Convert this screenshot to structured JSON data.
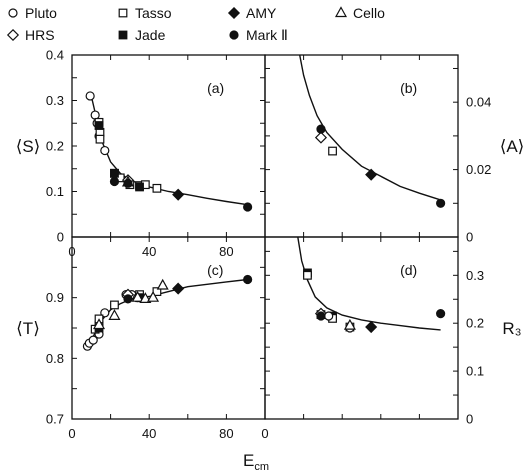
{
  "legend": [
    {
      "label": "Pluto",
      "marker": "circle-open"
    },
    {
      "label": "Tasso",
      "marker": "square-open"
    },
    {
      "label": "AMY",
      "marker": "diamond-filled"
    },
    {
      "label": "Cello",
      "marker": "triangle-open"
    },
    {
      "label": "HRS",
      "marker": "diamond-open"
    },
    {
      "label": "Jade",
      "marker": "square-filled"
    },
    {
      "label": "Mark Ⅱ",
      "marker": "circle-filled"
    }
  ],
  "x_axis_label": "E",
  "x_axis_label_sub": "cm",
  "chart_data": [
    {
      "panel": "(a)",
      "type": "scatter",
      "ylabel": "⟨S⟩",
      "ylabel_side": "left",
      "xlim": [
        0,
        100
      ],
      "ylim": [
        0,
        0.4
      ],
      "y_ticks": [
        "0",
        "0.1",
        "0.2",
        "0.3",
        "0.4"
      ],
      "x_ticks": [
        "0",
        "40",
        "80"
      ],
      "series": [
        {
          "name": "Pluto",
          "marker": "circle-open",
          "points": [
            [
              9.4,
              0.31
            ],
            [
              12,
              0.268
            ],
            [
              13,
              0.25
            ],
            [
              14,
              0.222
            ],
            [
              17,
              0.19
            ]
          ]
        },
        {
          "name": "Tasso",
          "marker": "square-open",
          "points": [
            [
              14,
              0.252
            ],
            [
              14.5,
              0.23
            ],
            [
              14.5,
              0.215
            ],
            [
              22,
              0.14
            ],
            [
              25,
              0.13
            ],
            [
              30,
              0.115
            ],
            [
              35,
              0.113
            ],
            [
              38,
              0.115
            ],
            [
              44,
              0.107
            ]
          ]
        },
        {
          "name": "Jade",
          "marker": "square-filled",
          "points": [
            [
              14,
              0.245
            ],
            [
              22,
              0.14
            ],
            [
              35,
              0.11
            ]
          ]
        },
        {
          "name": "HRS",
          "marker": "diamond-open",
          "points": [
            [
              29,
              0.125
            ]
          ]
        },
        {
          "name": "Cello",
          "marker": "triangle-open",
          "points": [
            [
              29,
              0.12
            ]
          ]
        },
        {
          "name": "AMY",
          "marker": "diamond-filled",
          "points": [
            [
              55,
              0.093
            ]
          ]
        },
        {
          "name": "Mark Ⅱ",
          "marker": "circle-filled",
          "points": [
            [
              22,
              0.122
            ],
            [
              29,
              0.118
            ],
            [
              91,
              0.066
            ]
          ]
        }
      ],
      "fit_curve": [
        [
          10,
          0.31
        ],
        [
          13,
          0.255
        ],
        [
          16,
          0.205
        ],
        [
          20,
          0.165
        ],
        [
          25,
          0.14
        ],
        [
          30,
          0.125
        ],
        [
          40,
          0.11
        ],
        [
          50,
          0.1
        ],
        [
          60,
          0.093
        ],
        [
          70,
          0.085
        ],
        [
          80,
          0.078
        ],
        [
          91,
          0.071
        ]
      ]
    },
    {
      "panel": "(b)",
      "type": "scatter",
      "ylabel": "⟨A⟩",
      "ylabel_side": "right",
      "xlim": [
        0,
        100
      ],
      "ylim": [
        0,
        0.054
      ],
      "y_ticks": [
        "0",
        "0.02",
        "0.04"
      ],
      "series": [
        {
          "name": "HRS",
          "marker": "diamond-open",
          "points": [
            [
              29,
              0.0295
            ]
          ]
        },
        {
          "name": "Mark Ⅱ",
          "marker": "circle-filled",
          "points": [
            [
              29,
              0.032
            ],
            [
              91,
              0.01
            ]
          ]
        },
        {
          "name": "Tasso",
          "marker": "square-open",
          "points": [
            [
              35,
              0.0255
            ]
          ]
        },
        {
          "name": "AMY",
          "marker": "diamond-filled",
          "points": [
            [
              55,
              0.0185
            ]
          ]
        }
      ],
      "fit_curve": [
        [
          18,
          0.054
        ],
        [
          20,
          0.048
        ],
        [
          23,
          0.042
        ],
        [
          27,
          0.036
        ],
        [
          32,
          0.031
        ],
        [
          40,
          0.026
        ],
        [
          50,
          0.021
        ],
        [
          60,
          0.018
        ],
        [
          70,
          0.015
        ],
        [
          80,
          0.013
        ],
        [
          91,
          0.011
        ]
      ]
    },
    {
      "panel": "(c)",
      "type": "scatter",
      "ylabel": "⟨T⟩",
      "ylabel_side": "left",
      "xlim": [
        0,
        100
      ],
      "ylim": [
        0.7,
        1.0
      ],
      "y_ticks": [
        "0.7",
        "0.8",
        "0.9"
      ],
      "x_ticks": [
        "0",
        "40",
        "80"
      ],
      "series": [
        {
          "name": "Pluto",
          "marker": "circle-open",
          "points": [
            [
              8,
              0.82
            ],
            [
              9,
              0.825
            ],
            [
              11,
              0.83
            ],
            [
              14,
              0.84
            ],
            [
              17,
              0.875
            ],
            [
              28,
              0.905
            ],
            [
              31,
              0.905
            ],
            [
              34,
              0.9
            ]
          ]
        },
        {
          "name": "Tasso",
          "marker": "square-open",
          "points": [
            [
              12,
              0.848
            ],
            [
              14,
              0.855
            ],
            [
              14,
              0.865
            ],
            [
              22,
              0.888
            ],
            [
              35,
              0.905
            ],
            [
              44,
              0.91
            ]
          ]
        },
        {
          "name": "Jade",
          "marker": "square-filled",
          "points": [
            [
              14,
              0.85
            ],
            [
              35,
              0.9
            ]
          ]
        },
        {
          "name": "Cello",
          "marker": "triangle-open",
          "points": [
            [
              14,
              0.855
            ],
            [
              22,
              0.87
            ],
            [
              34,
              0.9
            ],
            [
              38,
              0.898
            ],
            [
              42,
              0.9
            ],
            [
              47,
              0.92
            ]
          ]
        },
        {
          "name": "HRS",
          "marker": "diamond-open",
          "points": [
            [
              29,
              0.905
            ]
          ]
        },
        {
          "name": "AMY",
          "marker": "diamond-filled",
          "points": [
            [
              55,
              0.915
            ]
          ]
        },
        {
          "name": "Mark Ⅱ",
          "marker": "circle-filled",
          "points": [
            [
              29,
              0.898
            ],
            [
              91,
              0.93
            ]
          ]
        }
      ],
      "fit_curve": [
        [
          8,
          0.815
        ],
        [
          10,
          0.83
        ],
        [
          13,
          0.848
        ],
        [
          16,
          0.865
        ],
        [
          20,
          0.88
        ],
        [
          25,
          0.89
        ],
        [
          30,
          0.897
        ],
        [
          40,
          0.902
        ],
        [
          50,
          0.91
        ],
        [
          60,
          0.918
        ],
        [
          70,
          0.922
        ],
        [
          80,
          0.926
        ],
        [
          91,
          0.93
        ]
      ]
    },
    {
      "panel": "(d)",
      "type": "scatter",
      "ylabel": "R₃",
      "ylabel_side": "right",
      "xlim": [
        0,
        100
      ],
      "ylim": [
        0,
        0.38
      ],
      "y_ticks": [
        "0",
        "0.1",
        "0.2",
        "0.3"
      ],
      "series": [
        {
          "name": "Jade",
          "marker": "square-filled",
          "points": [
            [
              22,
              0.305
            ],
            [
              35,
              0.215
            ]
          ]
        },
        {
          "name": "Tasso",
          "marker": "square-open",
          "points": [
            [
              22,
              0.3
            ],
            [
              29,
              0.218
            ],
            [
              35,
              0.21
            ],
            [
              44,
              0.192
            ]
          ]
        },
        {
          "name": "HRS",
          "marker": "diamond-open",
          "points": [
            [
              29,
              0.22
            ]
          ]
        },
        {
          "name": "Pluto",
          "marker": "circle-open",
          "points": [
            [
              33,
              0.215
            ],
            [
              44,
              0.19
            ]
          ]
        },
        {
          "name": "Cello",
          "marker": "triangle-open",
          "points": [
            [
              44,
              0.195
            ]
          ]
        },
        {
          "name": "AMY",
          "marker": "diamond-filled",
          "points": [
            [
              55,
              0.192
            ]
          ]
        },
        {
          "name": "Mark Ⅱ",
          "marker": "circle-filled",
          "points": [
            [
              29,
              0.215
            ],
            [
              91,
              0.22
            ]
          ]
        }
      ],
      "fit_curve": [
        [
          17,
          0.38
        ],
        [
          19,
          0.33
        ],
        [
          22,
          0.29
        ],
        [
          26,
          0.255
        ],
        [
          32,
          0.232
        ],
        [
          40,
          0.217
        ],
        [
          50,
          0.207
        ],
        [
          60,
          0.2
        ],
        [
          70,
          0.195
        ],
        [
          80,
          0.19
        ],
        [
          91,
          0.186
        ]
      ]
    }
  ]
}
